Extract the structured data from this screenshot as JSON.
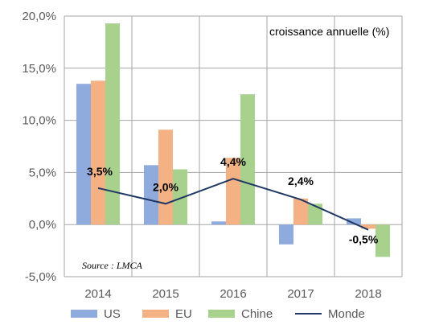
{
  "chart_data": {
    "type": "bar",
    "title": "croissance annuelle (%)",
    "source": "Source : LMCA",
    "categories": [
      "2014",
      "2015",
      "2016",
      "2017",
      "2018"
    ],
    "series": [
      {
        "name": "US",
        "type": "bar",
        "color": "#8faadc",
        "values": [
          13.5,
          5.7,
          0.3,
          -1.9,
          0.6
        ]
      },
      {
        "name": "EU",
        "type": "bar",
        "color": "#f4b183",
        "values": [
          13.8,
          9.1,
          6.4,
          2.5,
          -0.4
        ]
      },
      {
        "name": "Chine",
        "type": "bar",
        "color": "#a9d18e",
        "values": [
          19.3,
          5.3,
          12.5,
          2.0,
          -3.1
        ]
      },
      {
        "name": "Monde",
        "type": "line",
        "color": "#1f3864",
        "values": [
          3.5,
          2.0,
          4.4,
          2.4,
          -0.5
        ],
        "labels": [
          "3,5%",
          "2,0%",
          "4,4%",
          "2,4%",
          "-0,5%"
        ]
      }
    ],
    "ylim": [
      -5,
      20
    ],
    "yticks": [
      20,
      15,
      10,
      5,
      0,
      -5
    ],
    "ytick_labels": [
      "20,0%",
      "15,0%",
      "10,0%",
      "5,0%",
      "0,0%",
      "-5,0%"
    ],
    "grid": true,
    "legend_position": "bottom"
  }
}
